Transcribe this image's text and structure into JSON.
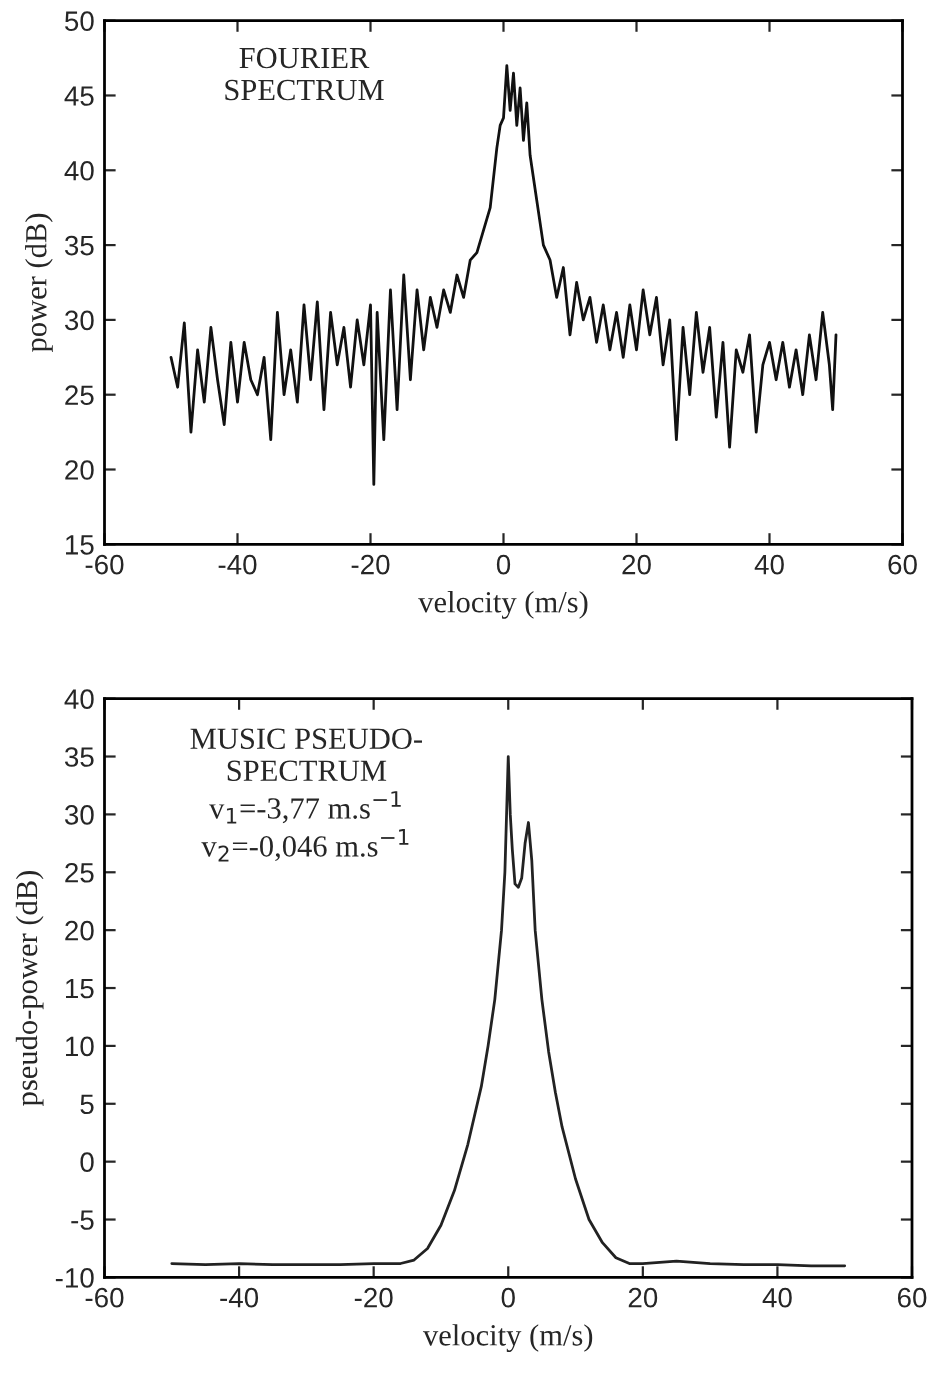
{
  "chart_data": [
    {
      "type": "line",
      "xlabel": "velocity (m/s)",
      "ylabel": "power (dB)",
      "annotations": [
        "FOURIER\nSPECTRUM"
      ],
      "xlim": [
        -60,
        60
      ],
      "xticks": [
        -60,
        -40,
        -20,
        0,
        20,
        40,
        60
      ],
      "ylim": [
        15,
        50
      ],
      "yticks": [
        15,
        20,
        25,
        30,
        35,
        40,
        45,
        50
      ],
      "grid": false,
      "series": [
        {
          "color": "#111111",
          "x": [
            -50,
            -49,
            -48,
            -47,
            -46,
            -45,
            -44,
            -43,
            -42,
            -41,
            -40,
            -39,
            -38,
            -37,
            -36,
            -35,
            -34,
            -33,
            -32,
            -31,
            -30,
            -29,
            -28,
            -27,
            -26,
            -25,
            -24,
            -23,
            -22,
            -21,
            -20,
            -19.5,
            -19,
            -18,
            -17,
            -16,
            -15,
            -14,
            -13,
            -12,
            -11,
            -10,
            -9,
            -8,
            -7,
            -6,
            -5,
            -4,
            -3,
            -2,
            -1,
            -0.5,
            0,
            0.5,
            1,
            1.5,
            2,
            2.5,
            3,
            3.5,
            4,
            5,
            6,
            7,
            8,
            9,
            10,
            11,
            12,
            13,
            14,
            15,
            16,
            17,
            18,
            19,
            20,
            21,
            22,
            23,
            24,
            25,
            26,
            27,
            28,
            29,
            30,
            31,
            32,
            33,
            34,
            35,
            36,
            37,
            38,
            39,
            40,
            41,
            42,
            43,
            44,
            45,
            46,
            47,
            48,
            49,
            49.5,
            50
          ],
          "values": [
            27.5,
            25.5,
            29.8,
            22.5,
            28,
            24.5,
            29.5,
            26,
            23,
            28.5,
            24.5,
            28.5,
            26,
            25,
            27.5,
            22,
            30.5,
            25,
            28,
            24.5,
            31,
            26,
            31.2,
            24,
            30.5,
            27,
            29.5,
            25.5,
            30,
            27,
            31,
            19,
            30.5,
            22,
            32,
            24,
            33,
            26,
            32,
            28,
            31.5,
            29.5,
            32,
            30.5,
            33,
            31.5,
            34,
            34.5,
            36,
            37.5,
            41.5,
            43,
            43.5,
            47,
            44,
            46.5,
            43,
            45.5,
            42,
            44.5,
            41,
            38,
            35,
            34,
            31.5,
            33.5,
            29,
            32.5,
            30,
            31.5,
            28.5,
            31,
            28,
            30.5,
            27.5,
            31,
            28,
            32,
            29,
            31.5,
            27,
            30,
            22,
            29.5,
            25,
            30.5,
            26.5,
            29.5,
            23.5,
            28.5,
            21.5,
            28,
            26.5,
            29,
            22.5,
            27,
            28.5,
            26,
            28.5,
            25.5,
            28,
            25,
            29,
            26,
            30.5,
            27,
            24,
            29
          ]
        }
      ]
    },
    {
      "type": "line",
      "xlabel": "velocity (m/s)",
      "ylabel": "pseudo-power (dB)",
      "annotations": [
        "MUSIC PSEUDO-\nSPECTRUM\nv$_{1}$=-3,77 m.s$^{−1}$\nv$_{2}$=-0,046 m.s$^{−1}$"
      ],
      "xlim": [
        -60,
        60
      ],
      "xticks": [
        -60,
        -40,
        -20,
        0,
        20,
        40,
        60
      ],
      "ylim": [
        -10,
        40
      ],
      "yticks": [
        -10,
        -5,
        0,
        5,
        10,
        15,
        20,
        25,
        30,
        35,
        40
      ],
      "grid": false,
      "series": [
        {
          "color": "#222222",
          "x": [
            -50,
            -45,
            -40,
            -35,
            -30,
            -25,
            -20,
            -16,
            -14,
            -12,
            -10,
            -8,
            -6,
            -4,
            -3,
            -2,
            -1,
            -0.5,
            0,
            0.3,
            0.6,
            1,
            1.5,
            2,
            2.5,
            3,
            3.5,
            4,
            5,
            6,
            7,
            8,
            10,
            12,
            14,
            16,
            18,
            20,
            25,
            30,
            35,
            40,
            45,
            50
          ],
          "values": [
            -8.8,
            -8.9,
            -8.8,
            -8.9,
            -8.9,
            -8.9,
            -8.8,
            -8.8,
            -8.5,
            -7.5,
            -5.5,
            -2.5,
            1.5,
            6.5,
            10,
            14,
            20,
            25,
            35,
            30,
            27,
            24,
            23.7,
            24.5,
            27.5,
            29.3,
            26,
            20,
            14,
            9.5,
            6,
            3,
            -1.5,
            -5,
            -7,
            -8.3,
            -8.8,
            -8.8,
            -8.6,
            -8.8,
            -8.9,
            -8.9,
            -9,
            -9
          ]
        }
      ]
    }
  ]
}
